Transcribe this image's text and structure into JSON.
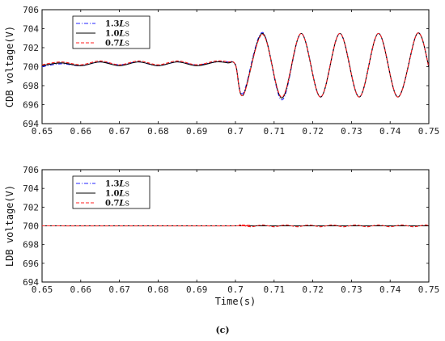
{
  "caption": "(c)",
  "colors": {
    "series_1_3": "#2323ff",
    "series_1_0": "#000000",
    "series_0_7": "#ff2020"
  },
  "chart_data": [
    {
      "type": "line",
      "title": "",
      "xlabel": "",
      "ylabel": "CDB voltage(V)",
      "xlim": [
        0.65,
        0.75
      ],
      "ylim": [
        694,
        706
      ],
      "xticks": [
        "0.65",
        "0.66",
        "0.67",
        "0.68",
        "0.69",
        "0.7",
        "0.71",
        "0.72",
        "0.73",
        "0.74",
        "0.75"
      ],
      "yticks": [
        "694",
        "696",
        "698",
        "700",
        "702",
        "704",
        "706"
      ],
      "legend_position": "top-left",
      "series": [
        {
          "name": "1.3L_S",
          "label": "1.3",
          "sub": "S",
          "style": "dash-dot",
          "color": "#2323ff",
          "x": [
            0.65,
            0.655,
            0.66,
            0.665,
            0.67,
            0.675,
            0.68,
            0.685,
            0.69,
            0.695,
            0.698,
            0.7,
            0.702,
            0.707,
            0.712,
            0.717,
            0.722,
            0.727,
            0.732,
            0.737,
            0.742,
            0.747,
            0.75
          ],
          "y": [
            700.0,
            700.3,
            700.1,
            700.5,
            700.2,
            700.5,
            700.1,
            700.5,
            700.2,
            700.5,
            700.5,
            700.2,
            697.2,
            703.6,
            696.5,
            703.5,
            696.8,
            703.5,
            696.8,
            703.5,
            696.8,
            703.5,
            700.0
          ]
        },
        {
          "name": "1.0L_S",
          "label": "1.0",
          "sub": "S",
          "style": "solid",
          "color": "#000000",
          "x": [
            0.65,
            0.655,
            0.66,
            0.665,
            0.67,
            0.675,
            0.68,
            0.685,
            0.69,
            0.695,
            0.698,
            0.7,
            0.702,
            0.707,
            0.712,
            0.717,
            0.722,
            0.727,
            0.732,
            0.737,
            0.742,
            0.747,
            0.75
          ],
          "y": [
            700.1,
            700.4,
            700.1,
            700.5,
            700.1,
            700.5,
            700.1,
            700.5,
            700.1,
            700.5,
            700.4,
            700.2,
            697.0,
            703.5,
            696.7,
            703.5,
            696.8,
            703.5,
            696.8,
            703.5,
            696.8,
            703.5,
            700.0
          ]
        },
        {
          "name": "0.7L_S",
          "label": "0.7",
          "sub": "S",
          "style": "dashed",
          "color": "#ff2020",
          "x": [
            0.65,
            0.655,
            0.66,
            0.665,
            0.67,
            0.675,
            0.68,
            0.685,
            0.69,
            0.695,
            0.698,
            0.7,
            0.702,
            0.707,
            0.712,
            0.717,
            0.722,
            0.727,
            0.732,
            0.737,
            0.742,
            0.747,
            0.75
          ],
          "y": [
            700.2,
            700.5,
            700.2,
            700.6,
            700.2,
            700.6,
            700.2,
            700.6,
            700.2,
            700.6,
            700.5,
            700.2,
            697.0,
            703.4,
            696.8,
            703.5,
            696.8,
            703.5,
            696.8,
            703.5,
            696.8,
            703.5,
            700.0
          ]
        }
      ]
    },
    {
      "type": "line",
      "title": "",
      "xlabel": "Time(s)",
      "ylabel": "LDB voltage(V)",
      "xlim": [
        0.65,
        0.75
      ],
      "ylim": [
        694,
        706
      ],
      "xticks": [
        "0.65",
        "0.66",
        "0.67",
        "0.68",
        "0.69",
        "0.7",
        "0.71",
        "0.72",
        "0.73",
        "0.74",
        "0.75"
      ],
      "yticks": [
        "694",
        "696",
        "698",
        "700",
        "702",
        "704",
        "706"
      ],
      "legend_position": "top-left",
      "series": [
        {
          "name": "1.3L_S",
          "label": "1.3",
          "sub": "S",
          "style": "dash-dot",
          "color": "#2323ff",
          "x": [
            0.65,
            0.7,
            0.75
          ],
          "y": [
            700.0,
            700.0,
            700.0
          ]
        },
        {
          "name": "1.0L_S",
          "label": "1.0",
          "sub": "S",
          "style": "solid",
          "color": "#000000",
          "x": [
            0.65,
            0.7,
            0.75
          ],
          "y": [
            700.0,
            700.0,
            700.0
          ]
        },
        {
          "name": "0.7L_S",
          "label": "0.7",
          "sub": "S",
          "style": "dashed",
          "color": "#ff2020",
          "x": [
            0.65,
            0.7,
            0.701,
            0.704,
            0.707,
            0.71,
            0.713,
            0.716,
            0.719,
            0.722,
            0.725,
            0.728,
            0.731,
            0.734,
            0.737,
            0.74,
            0.743,
            0.746,
            0.749,
            0.75
          ],
          "y": [
            700.0,
            700.0,
            700.1,
            699.9,
            700.1,
            699.9,
            700.1,
            699.9,
            700.1,
            699.9,
            700.1,
            699.9,
            700.1,
            699.9,
            700.1,
            699.9,
            700.1,
            699.9,
            700.1,
            700.0
          ]
        }
      ]
    }
  ]
}
